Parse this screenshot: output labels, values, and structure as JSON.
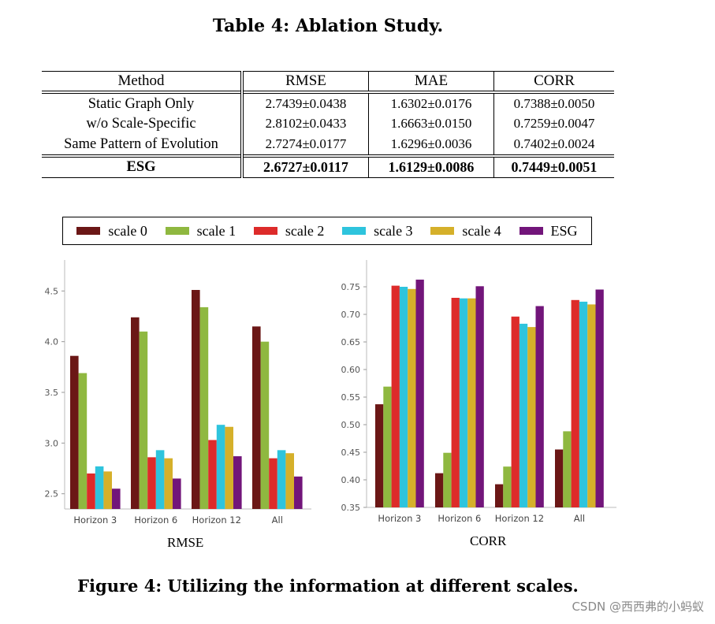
{
  "table": {
    "title": "Table 4: Ablation Study.",
    "headers": [
      "Method",
      "RMSE",
      "MAE",
      "CORR"
    ],
    "rows": [
      {
        "method": "Static Graph Only",
        "rmse": "2.7439±0.0438",
        "mae": "1.6302±0.0176",
        "corr": "0.7388±0.0050"
      },
      {
        "method": "w/o Scale-Specific",
        "rmse": "2.8102±0.0433",
        "mae": "1.6663±0.0150",
        "corr": "0.7259±0.0047"
      },
      {
        "method": "Same Pattern of Evolution",
        "rmse": "2.7274±0.0177",
        "mae": "1.6296±0.0036",
        "corr": "0.7402±0.0024"
      }
    ],
    "best_row": {
      "method": "ESG",
      "rmse": "2.6727±0.0117",
      "mae": "1.6129±0.0086",
      "corr": "0.7449±0.0051"
    }
  },
  "legend": {
    "items": [
      {
        "label": "scale 0",
        "color": "#6b1716"
      },
      {
        "label": "scale 1",
        "color": "#8fb840"
      },
      {
        "label": "scale 2",
        "color": "#dd2b2a"
      },
      {
        "label": "scale 3",
        "color": "#2ec4dd"
      },
      {
        "label": "scale 4",
        "color": "#d5b02a"
      },
      {
        "label": "ESG",
        "color": "#72157a"
      }
    ]
  },
  "chart_data": [
    {
      "type": "bar",
      "title": "RMSE",
      "categories": [
        "Horizon 3",
        "Horizon 6",
        "Horizon 12",
        "All"
      ],
      "ylim": [
        2.35,
        4.65
      ],
      "yticks": [
        2.5,
        3.0,
        3.5,
        4.0,
        4.5
      ],
      "ytick_labels": [
        "2.5",
        "3.0",
        "3.5",
        "4.0",
        "4.5"
      ],
      "grid": false,
      "series": [
        {
          "name": "scale 0",
          "values": [
            3.86,
            4.24,
            4.51,
            4.15
          ]
        },
        {
          "name": "scale 1",
          "values": [
            3.69,
            4.1,
            4.34,
            4.0
          ]
        },
        {
          "name": "scale 2",
          "values": [
            2.7,
            2.86,
            3.03,
            2.85
          ]
        },
        {
          "name": "scale 3",
          "values": [
            2.77,
            2.93,
            3.18,
            2.93
          ]
        },
        {
          "name": "scale 4",
          "values": [
            2.72,
            2.85,
            3.16,
            2.9
          ]
        },
        {
          "name": "ESG",
          "values": [
            2.55,
            2.65,
            2.87,
            2.67
          ]
        }
      ]
    },
    {
      "type": "bar",
      "title": "CORR",
      "categories": [
        "Horizon 3",
        "Horizon 6",
        "Horizon 12",
        "All"
      ],
      "ylim": [
        0.35,
        0.77
      ],
      "yticks": [
        0.35,
        0.4,
        0.45,
        0.5,
        0.55,
        0.6,
        0.65,
        0.7,
        0.75
      ],
      "ytick_labels": [
        "0.35",
        "0.40",
        "0.45",
        "0.50",
        "0.55",
        "0.60",
        "0.65",
        "0.70",
        "0.75"
      ],
      "grid": false,
      "series": [
        {
          "name": "scale 0",
          "values": [
            0.537,
            0.412,
            0.392,
            0.455
          ]
        },
        {
          "name": "scale 1",
          "values": [
            0.569,
            0.449,
            0.424,
            0.488
          ]
        },
        {
          "name": "scale 2",
          "values": [
            0.752,
            0.73,
            0.696,
            0.726
          ]
        },
        {
          "name": "scale 3",
          "values": [
            0.75,
            0.729,
            0.683,
            0.723
          ]
        },
        {
          "name": "scale 4",
          "values": [
            0.746,
            0.729,
            0.677,
            0.718
          ]
        },
        {
          "name": "ESG",
          "values": [
            0.763,
            0.751,
            0.715,
            0.745
          ]
        }
      ]
    }
  ],
  "figure": {
    "caption": "Figure 4: Utilizing the information at different scales."
  },
  "watermark": "CSDN @西西弗的小蚂蚁"
}
